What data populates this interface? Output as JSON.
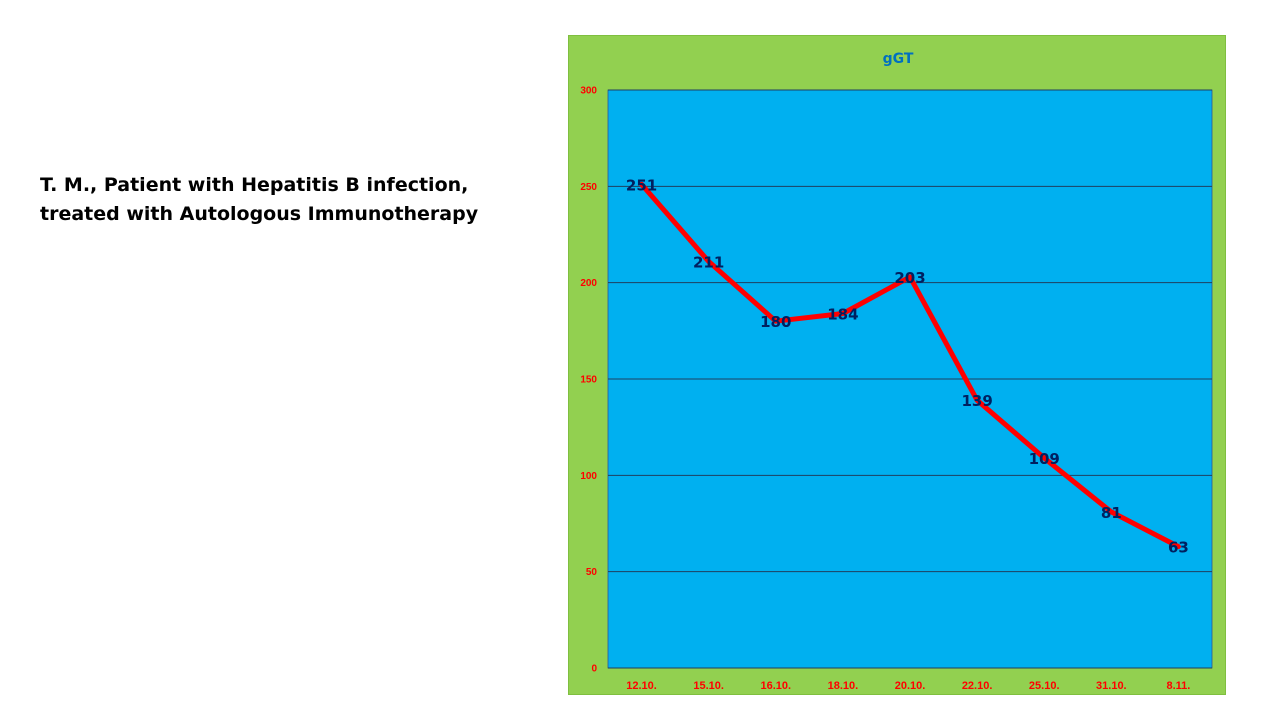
{
  "caption": {
    "line1": "T. M., Patient with Hepatitis B infection,",
    "line2": "treated with Autologous Immunotherapy"
  },
  "colors": {
    "frame_background": "#92d050",
    "plot_background": "#00b0f0",
    "line": "#ff0000",
    "tick_labels": "#ff0000",
    "title": "#0070c0",
    "data_labels": "#002060",
    "gridlines": "#1f3f5f"
  },
  "chart_data": {
    "type": "line",
    "title": "gGT",
    "xlabel": "",
    "ylabel": "",
    "categories": [
      "12.10.",
      "15.10.",
      "16.10.",
      "18.10.",
      "20.10.",
      "22.10.",
      "25.10.",
      "31.10.",
      "8.11."
    ],
    "series": [
      {
        "values": [
          251,
          211,
          180,
          184,
          203,
          139,
          109,
          81,
          63
        ]
      }
    ],
    "ylim": [
      0,
      300
    ],
    "yticks": [
      0,
      50,
      100,
      150,
      200,
      250,
      300
    ],
    "grid": true,
    "legend": "none",
    "data_labels": true
  }
}
